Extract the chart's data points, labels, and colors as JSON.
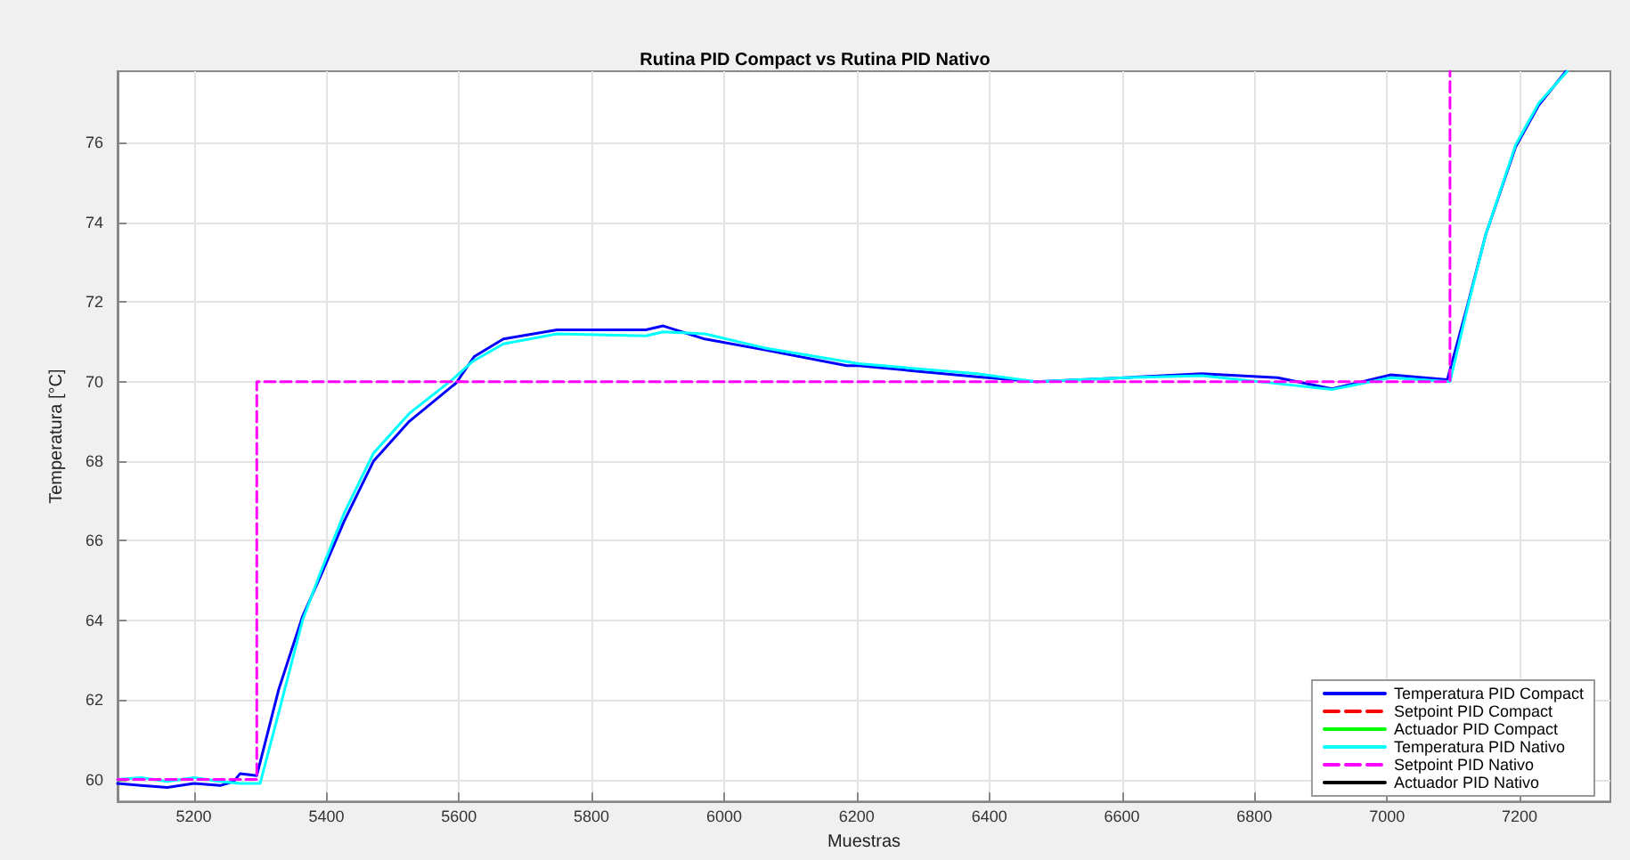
{
  "chart_data": {
    "type": "line",
    "title": "Rutina PID Compact vs Rutina PID Nativo",
    "xlabel": "Muestras",
    "ylabel": "Temperatura [°C]",
    "xlim": [
      5085,
      7337
    ],
    "ylim": [
      59.45,
      77.8
    ],
    "xticks": [
      5200,
      5400,
      5600,
      5800,
      6000,
      6200,
      6400,
      6600,
      6800,
      7000,
      7200
    ],
    "yticks": [
      60,
      62,
      64,
      66,
      68,
      70,
      72,
      74,
      76
    ],
    "grid": true,
    "legend": "bottom right",
    "marker": "none",
    "series": [
      {
        "name": "Temperatura PID Compact",
        "color": "#0000ff",
        "line_style": "solid",
        "x": [
          5085,
          5120,
          5160,
          5200,
          5240,
          5260,
          5270,
          5295,
          5328,
          5364,
          5391,
          5427,
          5471,
          5525,
          5596,
          5623,
          5667,
          5748,
          5882,
          5908,
          5971,
          6060,
          6185,
          6203,
          6381,
          6471,
          6605,
          6721,
          6835,
          6917,
          7006,
          7091,
          7122,
          7149,
          7194,
          7229,
          7270
        ],
        "values": [
          59.9,
          59.85,
          59.8,
          59.9,
          59.85,
          59.95,
          60.15,
          60.1,
          62.26,
          64.1,
          65.1,
          66.5,
          68.0,
          69.0,
          69.97,
          70.63,
          71.07,
          71.3,
          71.3,
          71.4,
          71.07,
          70.8,
          70.4,
          70.4,
          70.12,
          70.0,
          70.1,
          70.2,
          70.1,
          69.82,
          70.17,
          70.05,
          71.95,
          73.7,
          75.9,
          76.95,
          77.8
        ]
      },
      {
        "name": "Setpoint PID Compact",
        "color": "#ff0000",
        "line_style": "dashed"
      },
      {
        "name": "Actuador PID Compact",
        "color": "#00ff00",
        "line_style": "solid"
      },
      {
        "name": "Temperatura PID Nativo",
        "color": "#00ffff",
        "line_style": "solid",
        "x": [
          5085,
          5120,
          5160,
          5200,
          5240,
          5270,
          5300,
          5330,
          5364,
          5391,
          5427,
          5471,
          5525,
          5590,
          5620,
          5667,
          5748,
          5882,
          5908,
          5971,
          6060,
          6185,
          6203,
          6381,
          6471,
          6605,
          6721,
          6835,
          6917,
          7006,
          7095,
          7122,
          7149,
          7194,
          7229,
          7272
        ],
        "values": [
          60.0,
          60.05,
          59.95,
          60.05,
          59.95,
          59.9,
          59.9,
          61.8,
          64.0,
          65.2,
          66.7,
          68.2,
          69.2,
          70.05,
          70.5,
          70.95,
          71.2,
          71.15,
          71.25,
          71.2,
          70.85,
          70.5,
          70.45,
          70.2,
          70.0,
          70.1,
          70.15,
          69.95,
          69.8,
          70.1,
          70.0,
          71.9,
          73.7,
          75.95,
          77.0,
          77.8
        ]
      },
      {
        "name": "Setpoint PID Nativo",
        "color": "#ff00ff",
        "line_style": "dashed",
        "x": [
          5085,
          5295,
          5295,
          7095,
          7095
        ],
        "values": [
          60,
          60,
          70,
          70,
          77.8
        ]
      },
      {
        "name": "Actuador PID Nativo",
        "color": "#000000",
        "line_style": "solid"
      }
    ]
  }
}
